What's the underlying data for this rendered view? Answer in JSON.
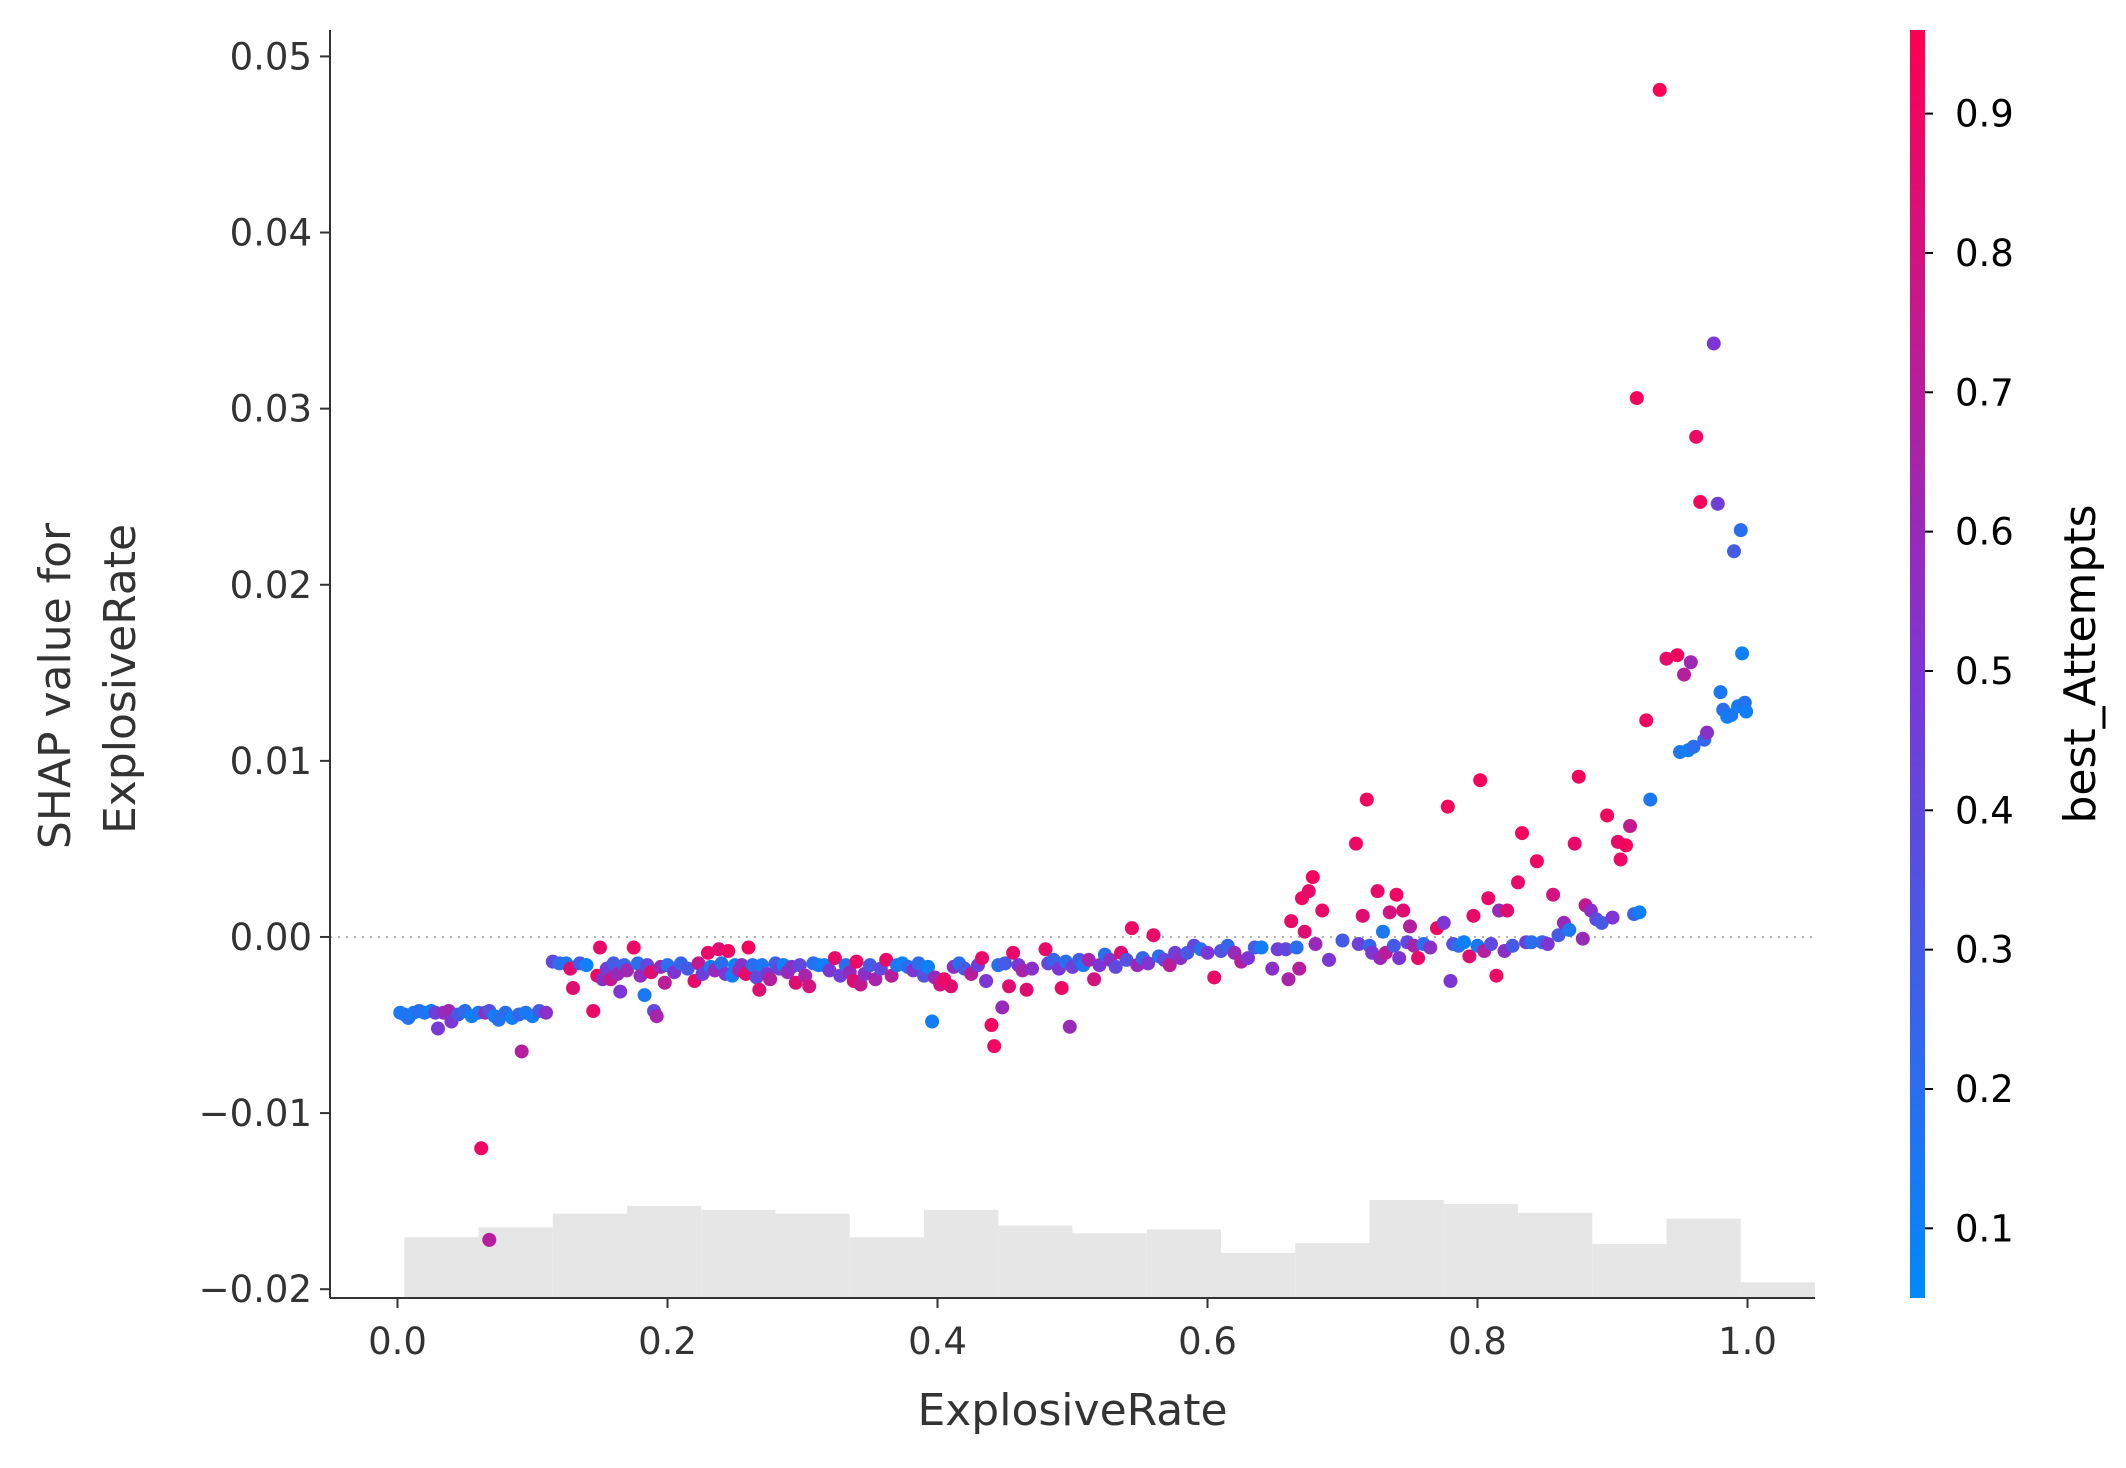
{
  "chart_data": {
    "type": "scatter",
    "xlabel": "ExplosiveRate",
    "ylabel_lines": [
      "SHAP value for",
      "ExplosiveRate"
    ],
    "xlim": [
      -0.05,
      1.05
    ],
    "ylim": [
      -0.0205,
      0.0515
    ],
    "xticks": [
      0.0,
      0.2,
      0.4,
      0.6,
      0.8,
      1.0
    ],
    "xtick_labels": [
      "0.0",
      "0.2",
      "0.4",
      "0.6",
      "0.8",
      "1.0"
    ],
    "yticks": [
      -0.02,
      -0.01,
      0.0,
      0.01,
      0.02,
      0.03,
      0.04,
      0.05
    ],
    "ytick_labels": [
      "−0.02",
      "−0.01",
      "0.00",
      "0.01",
      "0.02",
      "0.03",
      "0.04",
      "0.05"
    ],
    "zero_line": true,
    "grid": false,
    "colorbar": {
      "label": "best_Attempts",
      "range": [
        0.05,
        0.96
      ],
      "ticks": [
        0.1,
        0.2,
        0.3,
        0.4,
        0.5,
        0.6,
        0.7,
        0.8,
        0.9
      ],
      "tick_labels": [
        "0.1",
        "0.2",
        "0.3",
        "0.4",
        "0.5",
        "0.6",
        "0.7",
        "0.8",
        "0.9"
      ],
      "colors": [
        "#008afb",
        "#7e35d4",
        "#ff0052"
      ]
    },
    "histogram": {
      "color": "#e6e6e6",
      "bin_edges": [
        0.005,
        0.06,
        0.115,
        0.17,
        0.225,
        0.28,
        0.335,
        0.39,
        0.445,
        0.5,
        0.555,
        0.61,
        0.665,
        0.72,
        0.775,
        0.83,
        0.885,
        0.94,
        0.995,
        1.05
      ],
      "relative_heights": [
        0.62,
        0.72,
        0.86,
        0.94,
        0.9,
        0.86,
        0.62,
        0.9,
        0.74,
        0.66,
        0.7,
        0.46,
        0.56,
        1.0,
        0.96,
        0.87,
        0.55,
        0.81,
        0.16
      ]
    },
    "points": [
      [
        0.002,
        -0.0043,
        0.12
      ],
      [
        0.005,
        -0.0044,
        0.15
      ],
      [
        0.008,
        -0.0046,
        0.18
      ],
      [
        0.012,
        -0.0043,
        0.13
      ],
      [
        0.016,
        -0.0042,
        0.2
      ],
      [
        0.02,
        -0.0043,
        0.17
      ],
      [
        0.025,
        -0.0042,
        0.1
      ],
      [
        0.028,
        -0.0043,
        0.45
      ],
      [
        0.03,
        -0.0052,
        0.48
      ],
      [
        0.034,
        -0.0043,
        0.55
      ],
      [
        0.038,
        -0.0042,
        0.62
      ],
      [
        0.04,
        -0.0048,
        0.5
      ],
      [
        0.045,
        -0.0044,
        0.3
      ],
      [
        0.05,
        -0.0042,
        0.22
      ],
      [
        0.055,
        -0.0045,
        0.1
      ],
      [
        0.06,
        -0.0043,
        0.14
      ],
      [
        0.062,
        -0.012,
        0.9
      ],
      [
        0.065,
        -0.0043,
        0.6
      ],
      [
        0.068,
        -0.0042,
        0.35
      ],
      [
        0.068,
        -0.0172,
        0.7
      ],
      [
        0.072,
        -0.0045,
        0.12
      ],
      [
        0.075,
        -0.0047,
        0.18
      ],
      [
        0.08,
        -0.0043,
        0.2
      ],
      [
        0.085,
        -0.0046,
        0.1
      ],
      [
        0.09,
        -0.0044,
        0.25
      ],
      [
        0.092,
        -0.0065,
        0.7
      ],
      [
        0.095,
        -0.0043,
        0.15
      ],
      [
        0.1,
        -0.0045,
        0.12
      ],
      [
        0.105,
        -0.0042,
        0.3
      ],
      [
        0.11,
        -0.0043,
        0.55
      ],
      [
        0.115,
        -0.0014,
        0.4
      ],
      [
        0.12,
        -0.0015,
        0.2
      ],
      [
        0.125,
        -0.0015,
        0.15
      ],
      [
        0.128,
        -0.0018,
        0.85
      ],
      [
        0.13,
        -0.0029,
        0.85
      ],
      [
        0.135,
        -0.0015,
        0.3
      ],
      [
        0.14,
        -0.0016,
        0.1
      ],
      [
        0.145,
        -0.0042,
        0.88
      ],
      [
        0.148,
        -0.0022,
        0.9
      ],
      [
        0.15,
        -0.0006,
        0.88
      ],
      [
        0.152,
        -0.0024,
        0.55
      ],
      [
        0.155,
        -0.0018,
        0.45
      ],
      [
        0.158,
        -0.0024,
        0.75
      ],
      [
        0.16,
        -0.0015,
        0.3
      ],
      [
        0.163,
        -0.0021,
        0.6
      ],
      [
        0.165,
        -0.0031,
        0.5
      ],
      [
        0.168,
        -0.0016,
        0.25
      ],
      [
        0.17,
        -0.0019,
        0.62
      ],
      [
        0.175,
        -0.0006,
        0.9
      ],
      [
        0.178,
        -0.0015,
        0.2
      ],
      [
        0.18,
        -0.0022,
        0.58
      ],
      [
        0.183,
        -0.0033,
        0.15
      ],
      [
        0.185,
        -0.0016,
        0.4
      ],
      [
        0.188,
        -0.002,
        0.85
      ],
      [
        0.19,
        -0.0042,
        0.4
      ],
      [
        0.192,
        -0.0045,
        0.65
      ],
      [
        0.195,
        -0.0017,
        0.6
      ],
      [
        0.198,
        -0.0026,
        0.72
      ],
      [
        0.2,
        -0.0016,
        0.2
      ],
      [
        0.205,
        -0.002,
        0.5
      ],
      [
        0.21,
        -0.0015,
        0.25
      ],
      [
        0.215,
        -0.0018,
        0.3
      ],
      [
        0.22,
        -0.0025,
        0.88
      ],
      [
        0.223,
        -0.0015,
        0.75
      ],
      [
        0.226,
        -0.0021,
        0.45
      ],
      [
        0.23,
        -0.0009,
        0.9
      ],
      [
        0.232,
        -0.0017,
        0.15
      ],
      [
        0.235,
        -0.0019,
        0.6
      ],
      [
        0.238,
        -0.0007,
        0.85
      ],
      [
        0.24,
        -0.0015,
        0.2
      ],
      [
        0.243,
        -0.0021,
        0.5
      ],
      [
        0.245,
        -0.0008,
        0.9
      ],
      [
        0.248,
        -0.0022,
        0.12
      ],
      [
        0.25,
        -0.0016,
        0.1
      ],
      [
        0.253,
        -0.0019,
        0.65
      ],
      [
        0.255,
        -0.0016,
        0.55
      ],
      [
        0.258,
        -0.0021,
        0.88
      ],
      [
        0.26,
        -0.0006,
        0.92
      ],
      [
        0.263,
        -0.0016,
        0.2
      ],
      [
        0.266,
        -0.0023,
        0.4
      ],
      [
        0.268,
        -0.003,
        0.85
      ],
      [
        0.27,
        -0.0016,
        0.15
      ],
      [
        0.274,
        -0.0021,
        0.5
      ],
      [
        0.276,
        -0.0024,
        0.7
      ],
      [
        0.28,
        -0.0015,
        0.3
      ],
      [
        0.283,
        -0.0018,
        0.45
      ],
      [
        0.286,
        -0.0016,
        0.1
      ],
      [
        0.289,
        -0.002,
        0.6
      ],
      [
        0.292,
        -0.0017,
        0.55
      ],
      [
        0.295,
        -0.0026,
        0.85
      ],
      [
        0.298,
        -0.0016,
        0.4
      ],
      [
        0.302,
        -0.0022,
        0.65
      ],
      [
        0.305,
        -0.0028,
        0.8
      ],
      [
        0.308,
        -0.0015,
        0.2
      ],
      [
        0.312,
        -0.0016,
        0.15
      ],
      [
        0.316,
        -0.0016,
        0.1
      ],
      [
        0.32,
        -0.0019,
        0.5
      ],
      [
        0.324,
        -0.0012,
        0.88
      ],
      [
        0.328,
        -0.0022,
        0.45
      ],
      [
        0.332,
        -0.0016,
        0.2
      ],
      [
        0.335,
        -0.002,
        0.6
      ],
      [
        0.338,
        -0.0025,
        0.85
      ],
      [
        0.34,
        -0.0014,
        0.9
      ],
      [
        0.343,
        -0.0027,
        0.75
      ],
      [
        0.346,
        -0.0021,
        0.55
      ],
      [
        0.35,
        -0.0016,
        0.3
      ],
      [
        0.354,
        -0.0024,
        0.65
      ],
      [
        0.358,
        -0.0018,
        0.4
      ],
      [
        0.362,
        -0.0013,
        0.88
      ],
      [
        0.366,
        -0.0022,
        0.7
      ],
      [
        0.37,
        -0.0016,
        0.15
      ],
      [
        0.374,
        -0.0015,
        0.1
      ],
      [
        0.378,
        -0.0017,
        0.2
      ],
      [
        0.382,
        -0.0019,
        0.5
      ],
      [
        0.386,
        -0.0015,
        0.2
      ],
      [
        0.39,
        -0.0022,
        0.35
      ],
      [
        0.393,
        -0.0017,
        0.1
      ],
      [
        0.396,
        -0.0048,
        0.12
      ],
      [
        0.398,
        -0.0023,
        0.6
      ],
      [
        0.402,
        -0.0027,
        0.8
      ],
      [
        0.405,
        -0.0024,
        0.9
      ],
      [
        0.41,
        -0.0028,
        0.85
      ],
      [
        0.412,
        -0.0017,
        0.55
      ],
      [
        0.416,
        -0.0015,
        0.2
      ],
      [
        0.42,
        -0.0018,
        0.3
      ],
      [
        0.425,
        -0.0021,
        0.72
      ],
      [
        0.43,
        -0.0016,
        0.45
      ],
      [
        0.433,
        -0.0012,
        0.88
      ],
      [
        0.436,
        -0.0025,
        0.5
      ],
      [
        0.44,
        -0.005,
        0.92
      ],
      [
        0.442,
        -0.0062,
        0.9
      ],
      [
        0.445,
        -0.0016,
        0.2
      ],
      [
        0.448,
        -0.004,
        0.6
      ],
      [
        0.45,
        -0.0015,
        0.3
      ],
      [
        0.453,
        -0.0028,
        0.85
      ],
      [
        0.456,
        -0.0009,
        0.88
      ],
      [
        0.46,
        -0.0016,
        0.5
      ],
      [
        0.463,
        -0.0019,
        0.65
      ],
      [
        0.466,
        -0.003,
        0.85
      ],
      [
        0.47,
        -0.0018,
        0.55
      ],
      [
        0.48,
        -0.0007,
        0.88
      ],
      [
        0.482,
        -0.0015,
        0.4
      ],
      [
        0.486,
        -0.0013,
        0.25
      ],
      [
        0.49,
        -0.0018,
        0.5
      ],
      [
        0.492,
        -0.0029,
        0.9
      ],
      [
        0.495,
        -0.0014,
        0.2
      ],
      [
        0.498,
        -0.0051,
        0.6
      ],
      [
        0.5,
        -0.0017,
        0.45
      ],
      [
        0.505,
        -0.0013,
        0.3
      ],
      [
        0.508,
        -0.0016,
        0.15
      ],
      [
        0.512,
        -0.0013,
        0.65
      ],
      [
        0.516,
        -0.0024,
        0.8
      ],
      [
        0.52,
        -0.0016,
        0.5
      ],
      [
        0.524,
        -0.001,
        0.2
      ],
      [
        0.528,
        -0.0013,
        0.55
      ],
      [
        0.532,
        -0.0017,
        0.4
      ],
      [
        0.536,
        -0.0009,
        0.85
      ],
      [
        0.54,
        -0.0013,
        0.35
      ],
      [
        0.544,
        0.0005,
        0.9
      ],
      [
        0.548,
        -0.0016,
        0.6
      ],
      [
        0.552,
        -0.0012,
        0.25
      ],
      [
        0.556,
        -0.0015,
        0.5
      ],
      [
        0.56,
        0.0001,
        0.88
      ],
      [
        0.564,
        -0.0011,
        0.2
      ],
      [
        0.568,
        -0.0013,
        0.4
      ],
      [
        0.572,
        -0.0016,
        0.72
      ],
      [
        0.576,
        -0.0009,
        0.45
      ],
      [
        0.58,
        -0.0012,
        0.55
      ],
      [
        0.585,
        -0.0009,
        0.3
      ],
      [
        0.59,
        -0.0005,
        0.4
      ],
      [
        0.595,
        -0.0007,
        0.2
      ],
      [
        0.6,
        -0.0009,
        0.5
      ],
      [
        0.605,
        -0.0023,
        0.88
      ],
      [
        0.61,
        -0.0008,
        0.35
      ],
      [
        0.615,
        -0.0005,
        0.25
      ],
      [
        0.62,
        -0.0009,
        0.6
      ],
      [
        0.625,
        -0.0014,
        0.7
      ],
      [
        0.63,
        -0.0012,
        0.5
      ],
      [
        0.635,
        -0.0006,
        0.3
      ],
      [
        0.64,
        -0.0006,
        0.12
      ],
      [
        0.648,
        -0.0018,
        0.55
      ],
      [
        0.652,
        -0.0007,
        0.45
      ],
      [
        0.658,
        -0.0007,
        0.4
      ],
      [
        0.66,
        -0.0024,
        0.65
      ],
      [
        0.662,
        0.0009,
        0.88
      ],
      [
        0.666,
        -0.0006,
        0.2
      ],
      [
        0.668,
        -0.0018,
        0.7
      ],
      [
        0.67,
        0.0022,
        0.9
      ],
      [
        0.672,
        0.0003,
        0.85
      ],
      [
        0.675,
        0.0026,
        0.88
      ],
      [
        0.678,
        0.0034,
        0.92
      ],
      [
        0.68,
        -0.0004,
        0.6
      ],
      [
        0.685,
        0.0015,
        0.88
      ],
      [
        0.69,
        -0.0013,
        0.5
      ],
      [
        0.7,
        -0.0002,
        0.3
      ],
      [
        0.71,
        0.0053,
        0.9
      ],
      [
        0.712,
        -0.0004,
        0.45
      ],
      [
        0.715,
        0.0012,
        0.85
      ],
      [
        0.718,
        0.0078,
        0.92
      ],
      [
        0.72,
        -0.0005,
        0.25
      ],
      [
        0.722,
        -0.0009,
        0.5
      ],
      [
        0.726,
        0.0026,
        0.88
      ],
      [
        0.728,
        -0.0012,
        0.6
      ],
      [
        0.73,
        0.0003,
        0.15
      ],
      [
        0.732,
        -0.0009,
        0.72
      ],
      [
        0.735,
        0.0014,
        0.8
      ],
      [
        0.738,
        -0.0005,
        0.3
      ],
      [
        0.74,
        0.0024,
        0.9
      ],
      [
        0.742,
        -0.0012,
        0.5
      ],
      [
        0.745,
        0.0015,
        0.85
      ],
      [
        0.748,
        -0.0003,
        0.4
      ],
      [
        0.75,
        0.0006,
        0.7
      ],
      [
        0.753,
        -0.0005,
        0.65
      ],
      [
        0.756,
        -0.0012,
        0.88
      ],
      [
        0.76,
        -0.0004,
        0.2
      ],
      [
        0.765,
        -0.0006,
        0.55
      ],
      [
        0.77,
        0.0005,
        0.9
      ],
      [
        0.775,
        0.0008,
        0.5
      ],
      [
        0.778,
        0.0074,
        0.92
      ],
      [
        0.78,
        -0.0025,
        0.5
      ],
      [
        0.782,
        -0.0004,
        0.35
      ],
      [
        0.786,
        -0.0005,
        0.2
      ],
      [
        0.79,
        -0.0003,
        0.1
      ],
      [
        0.794,
        -0.0011,
        0.85
      ],
      [
        0.797,
        0.0012,
        0.88
      ],
      [
        0.8,
        -0.0005,
        0.15
      ],
      [
        0.802,
        0.0089,
        0.92
      ],
      [
        0.805,
        -0.0008,
        0.7
      ],
      [
        0.808,
        0.0022,
        0.88
      ],
      [
        0.81,
        -0.0004,
        0.4
      ],
      [
        0.814,
        -0.0022,
        0.9
      ],
      [
        0.816,
        0.0015,
        0.6
      ],
      [
        0.82,
        -0.0008,
        0.55
      ],
      [
        0.822,
        0.0015,
        0.85
      ],
      [
        0.826,
        -0.0005,
        0.3
      ],
      [
        0.83,
        0.0031,
        0.88
      ],
      [
        0.833,
        0.0059,
        0.92
      ],
      [
        0.836,
        -0.0003,
        0.45
      ],
      [
        0.84,
        -0.0003,
        0.2
      ],
      [
        0.844,
        0.0043,
        0.9
      ],
      [
        0.848,
        -0.0003,
        0.25
      ],
      [
        0.852,
        -0.0004,
        0.5
      ],
      [
        0.856,
        0.0024,
        0.8
      ],
      [
        0.86,
        0.0001,
        0.3
      ],
      [
        0.864,
        0.0008,
        0.6
      ],
      [
        0.868,
        0.0004,
        0.15
      ],
      [
        0.872,
        0.0053,
        0.88
      ],
      [
        0.875,
        0.0091,
        0.92
      ],
      [
        0.878,
        -0.0001,
        0.6
      ],
      [
        0.88,
        0.0018,
        0.75
      ],
      [
        0.884,
        0.0015,
        0.55
      ],
      [
        0.888,
        0.001,
        0.4
      ],
      [
        0.892,
        0.0008,
        0.3
      ],
      [
        0.896,
        0.0069,
        0.92
      ],
      [
        0.9,
        0.0011,
        0.5
      ],
      [
        0.904,
        0.0054,
        0.88
      ],
      [
        0.906,
        0.0044,
        0.9
      ],
      [
        0.91,
        0.0052,
        0.92
      ],
      [
        0.913,
        0.0063,
        0.75
      ],
      [
        0.916,
        0.0013,
        0.25
      ],
      [
        0.918,
        0.0306,
        0.93
      ],
      [
        0.92,
        0.0014,
        0.12
      ],
      [
        0.925,
        0.0123,
        0.9
      ],
      [
        0.928,
        0.0078,
        0.15
      ],
      [
        0.935,
        0.0481,
        0.95
      ],
      [
        0.94,
        0.0158,
        0.88
      ],
      [
        0.948,
        0.016,
        0.92
      ],
      [
        0.95,
        0.0105,
        0.15
      ],
      [
        0.953,
        0.0149,
        0.7
      ],
      [
        0.956,
        0.0106,
        0.1
      ],
      [
        0.958,
        0.0156,
        0.62
      ],
      [
        0.96,
        0.0108,
        0.2
      ],
      [
        0.962,
        0.0284,
        0.9
      ],
      [
        0.965,
        0.0247,
        0.92
      ],
      [
        0.968,
        0.0112,
        0.25
      ],
      [
        0.97,
        0.0116,
        0.55
      ],
      [
        0.975,
        0.0337,
        0.5
      ],
      [
        0.978,
        0.0246,
        0.45
      ],
      [
        0.98,
        0.0139,
        0.15
      ],
      [
        0.982,
        0.0129,
        0.2
      ],
      [
        0.985,
        0.0125,
        0.1
      ],
      [
        0.988,
        0.0126,
        0.15
      ],
      [
        0.99,
        0.0219,
        0.3
      ],
      [
        0.993,
        0.0131,
        0.12
      ],
      [
        0.995,
        0.0231,
        0.2
      ],
      [
        0.996,
        0.0161,
        0.1
      ],
      [
        0.998,
        0.0133,
        0.18
      ],
      [
        0.999,
        0.0128,
        0.12
      ]
    ]
  }
}
